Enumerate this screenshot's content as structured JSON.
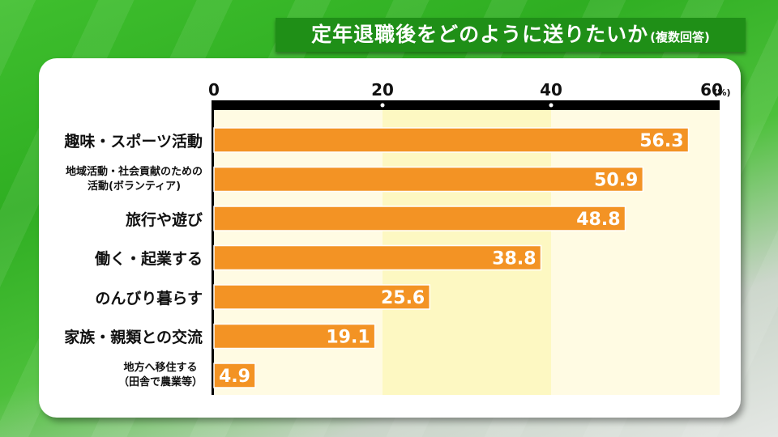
{
  "title": {
    "main": "定年退職後をどのように送りたいか",
    "sub": "(複数回答)"
  },
  "chart_data": {
    "type": "bar",
    "orientation": "horizontal",
    "title": "定年退職後をどのように送りたいか(複数回答)",
    "unit_label": "(%)",
    "xlim": [
      0,
      60
    ],
    "ticks": [
      "0",
      "20",
      "40",
      "60"
    ],
    "categories": [
      "趣味・スポーツ活動",
      "地域活動・社会貢献のための活動(ボランティア)",
      "旅行や遊び",
      "働く・起業する",
      "のんびり暮らす",
      "家族・親類との交流",
      "地方へ移住する（田舎で農業等）"
    ],
    "category_lines": [
      [
        "趣味・スポーツ活動"
      ],
      [
        "地域活動・社会貢献のための",
        "活動(ボランティア)"
      ],
      [
        "旅行や遊び"
      ],
      [
        "働く・起業する"
      ],
      [
        "のんびり暮らす"
      ],
      [
        "家族・親類との交流"
      ],
      [
        "地方へ移住する",
        "（田舎で農業等）"
      ]
    ],
    "values": [
      56.3,
      50.9,
      48.8,
      38.8,
      25.6,
      19.1,
      4.9
    ],
    "value_labels": [
      "56.3",
      "50.9",
      "48.8",
      "38.8",
      "25.6",
      "19.1",
      "4.9"
    ],
    "colors": {
      "bar": "#f39324",
      "bar_edge": "#ffffff",
      "zone_light": "#fffbe3",
      "zone_mid": "#fdf8c2",
      "axis": "#000000"
    }
  }
}
